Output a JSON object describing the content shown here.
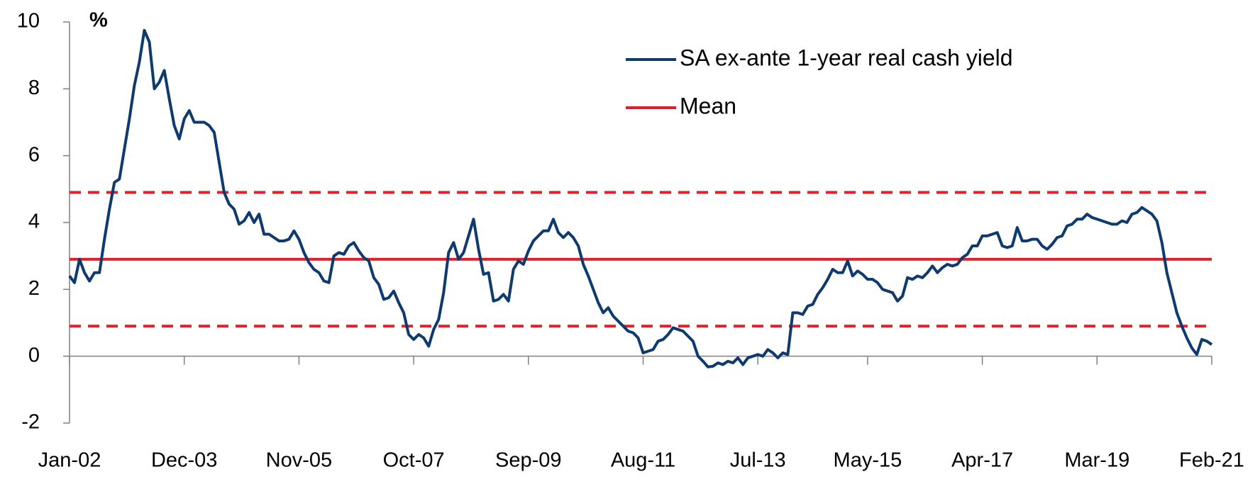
{
  "chart_data": {
    "type": "line",
    "y_label": "%",
    "categories": [
      "Jan-02",
      null,
      null,
      null,
      null,
      null,
      null,
      null,
      null,
      null,
      null,
      null,
      null,
      null,
      null,
      null,
      null,
      null,
      null,
      null,
      null,
      null,
      null,
      "Dec-03",
      null,
      null,
      null,
      null,
      null,
      null,
      null,
      null,
      null,
      null,
      null,
      null,
      null,
      null,
      null,
      null,
      null,
      null,
      null,
      null,
      null,
      null,
      "Nov-05",
      null,
      null,
      null,
      null,
      null,
      null,
      null,
      null,
      null,
      null,
      null,
      null,
      null,
      null,
      null,
      null,
      null,
      null,
      null,
      null,
      null,
      null,
      "Oct-07",
      null,
      null,
      null,
      null,
      null,
      null,
      null,
      null,
      null,
      null,
      null,
      null,
      null,
      null,
      null,
      null,
      null,
      null,
      null,
      null,
      null,
      null,
      "Sep-09",
      null,
      null,
      null,
      null,
      null,
      null,
      null,
      null,
      null,
      null,
      null,
      null,
      null,
      null,
      null,
      null,
      null,
      null,
      null,
      null,
      null,
      null,
      "Aug-11",
      null,
      null,
      null,
      null,
      null,
      null,
      null,
      null,
      null,
      null,
      null,
      null,
      null,
      null,
      null,
      null,
      null,
      null,
      null,
      null,
      null,
      null,
      "Jul-13",
      null,
      null,
      null,
      null,
      null,
      null,
      null,
      null,
      null,
      null,
      null,
      null,
      null,
      null,
      null,
      null,
      null,
      null,
      null,
      null,
      null,
      "May-15",
      null,
      null,
      null,
      null,
      null,
      null,
      null,
      null,
      null,
      null,
      null,
      null,
      null,
      null,
      null,
      null,
      null,
      null,
      null,
      null,
      null,
      null,
      "Apr-17",
      null,
      null,
      null,
      null,
      null,
      null,
      null,
      null,
      null,
      null,
      null,
      null,
      null,
      null,
      null,
      null,
      null,
      null,
      null,
      null,
      null,
      null,
      "Mar-19",
      null,
      null,
      null,
      null,
      null,
      null,
      null,
      null,
      null,
      null,
      null,
      null,
      null,
      null,
      null,
      null,
      null,
      null,
      null,
      null,
      null,
      null,
      "Feb-21"
    ],
    "series": [
      {
        "name": "SA ex-ante 1-year real cash yield",
        "color": "#0e3a6e",
        "values": [
          2.4,
          2.2,
          2.9,
          2.5,
          2.25,
          2.5,
          2.5,
          3.5,
          4.4,
          5.2,
          5.3,
          6.2,
          7.1,
          8.1,
          8.8,
          9.75,
          9.4,
          8.0,
          8.2,
          8.55,
          7.7,
          6.9,
          6.5,
          7.1,
          7.35,
          7.0,
          7.0,
          7.0,
          6.9,
          6.7,
          5.8,
          4.9,
          4.55,
          4.4,
          3.95,
          4.05,
          4.3,
          4.0,
          4.25,
          3.65,
          3.65,
          3.55,
          3.45,
          3.45,
          3.5,
          3.75,
          3.5,
          3.1,
          2.8,
          2.6,
          2.5,
          2.25,
          2.2,
          3.0,
          3.1,
          3.05,
          3.3,
          3.4,
          3.15,
          2.95,
          2.85,
          2.35,
          2.15,
          1.7,
          1.75,
          1.95,
          1.6,
          1.3,
          0.65,
          0.5,
          0.65,
          0.55,
          0.3,
          0.8,
          1.1,
          1.9,
          3.1,
          3.4,
          2.9,
          3.1,
          3.6,
          4.1,
          3.2,
          2.45,
          2.5,
          1.65,
          1.7,
          1.85,
          1.65,
          2.6,
          2.85,
          2.75,
          3.15,
          3.45,
          3.6,
          3.75,
          3.75,
          4.1,
          3.7,
          3.55,
          3.7,
          3.55,
          3.3,
          2.75,
          2.4,
          2.0,
          1.6,
          1.3,
          1.45,
          1.2,
          1.05,
          0.9,
          0.75,
          0.7,
          0.55,
          0.1,
          0.15,
          0.2,
          0.45,
          0.5,
          0.65,
          0.85,
          0.8,
          0.75,
          0.6,
          0.45,
          0.0,
          -0.15,
          -0.32,
          -0.3,
          -0.2,
          -0.25,
          -0.15,
          -0.2,
          -0.05,
          -0.25,
          -0.05,
          0.0,
          0.05,
          0.0,
          0.2,
          0.1,
          -0.05,
          0.1,
          0.05,
          1.3,
          1.3,
          1.25,
          1.5,
          1.55,
          1.85,
          2.05,
          2.3,
          2.6,
          2.5,
          2.5,
          2.85,
          2.4,
          2.55,
          2.45,
          2.3,
          2.3,
          2.2,
          2.0,
          1.95,
          1.9,
          1.65,
          1.8,
          2.35,
          2.3,
          2.4,
          2.35,
          2.5,
          2.7,
          2.5,
          2.65,
          2.75,
          2.7,
          2.75,
          2.95,
          3.05,
          3.3,
          3.3,
          3.6,
          3.6,
          3.65,
          3.7,
          3.3,
          3.25,
          3.3,
          3.85,
          3.45,
          3.45,
          3.5,
          3.5,
          3.3,
          3.2,
          3.35,
          3.55,
          3.6,
          3.9,
          3.95,
          4.1,
          4.1,
          4.25,
          4.15,
          4.1,
          4.05,
          4.0,
          3.95,
          3.95,
          4.05,
          4.0,
          4.25,
          4.3,
          4.45,
          4.35,
          4.25,
          4.05,
          3.4,
          2.5,
          1.9,
          1.3,
          0.9,
          0.55,
          0.25,
          0.05,
          0.5,
          0.45,
          0.35
        ]
      }
    ],
    "hlines": [
      {
        "name": "Mean",
        "color": "#e0202a",
        "value": 2.9
      },
      {
        "color": "#e0202a",
        "value": 4.9,
        "dashed": true
      },
      {
        "color": "#e0202a",
        "value": 0.9,
        "dashed": true
      }
    ],
    "ylim": [
      -2,
      10
    ],
    "yticks": [
      -2,
      0,
      2,
      4,
      6,
      8,
      10
    ]
  }
}
